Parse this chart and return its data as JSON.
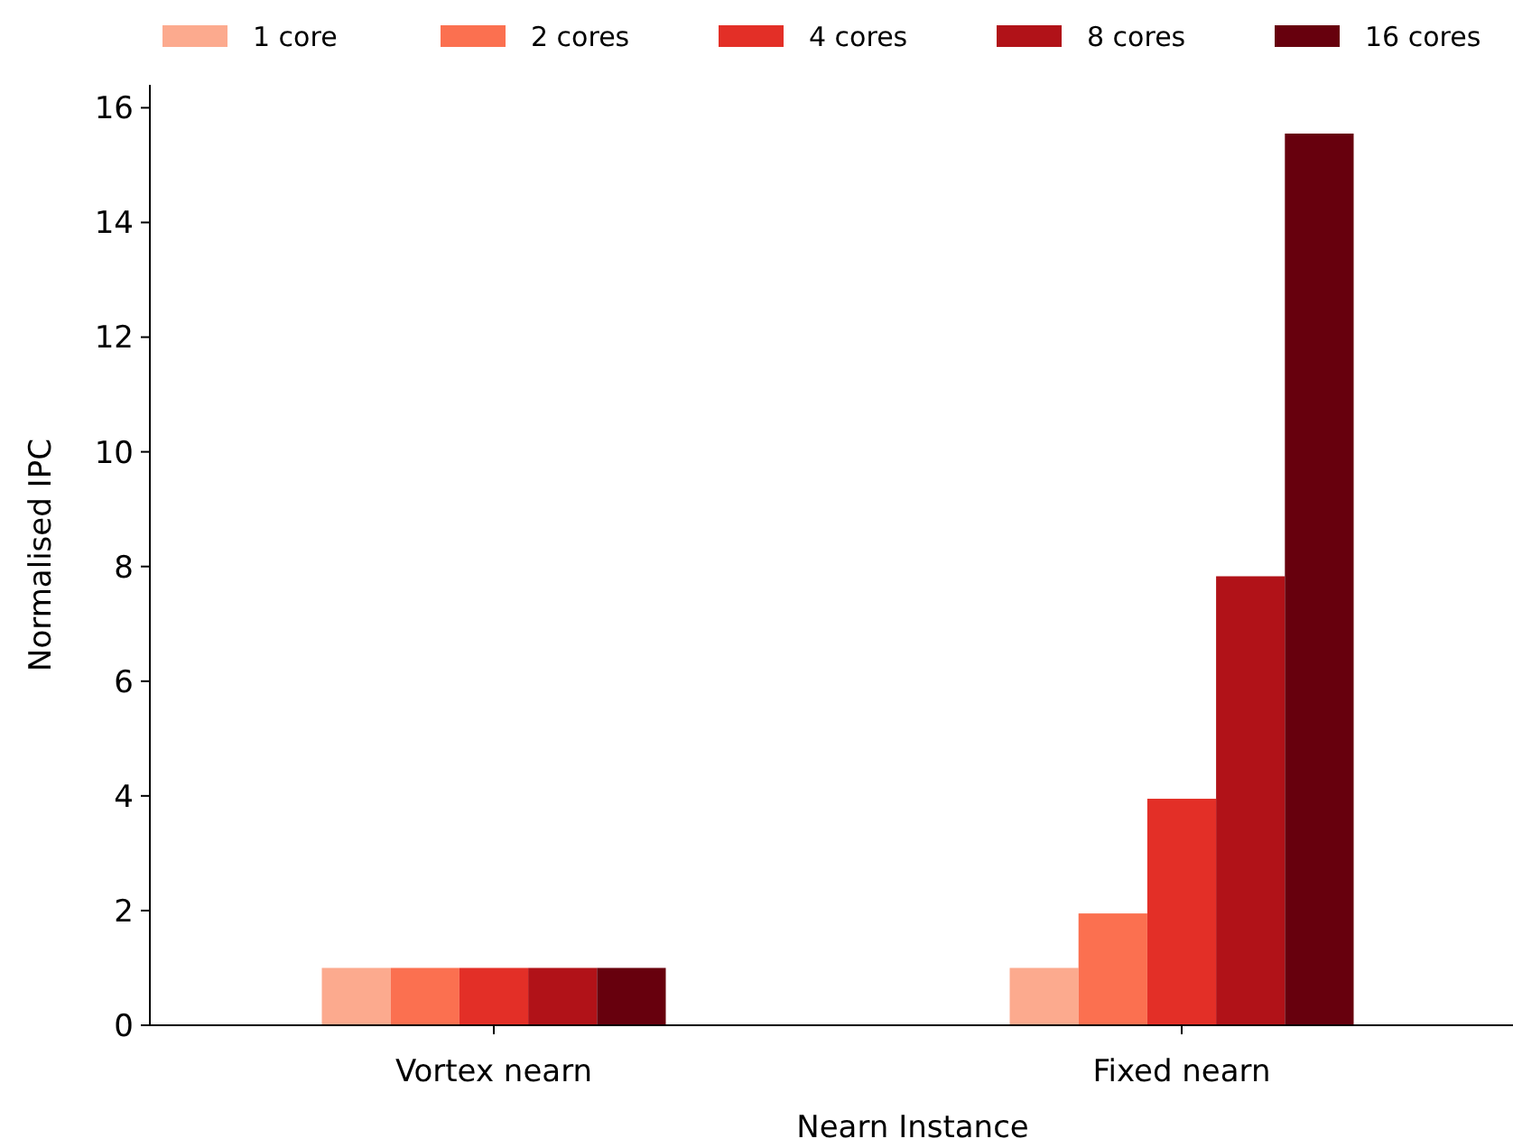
{
  "chart_data": {
    "type": "bar",
    "xlabel": "Nearn Instance",
    "ylabel": "Normalised IPC",
    "categories": [
      "Vortex nearn",
      "Fixed nearn"
    ],
    "series": [
      {
        "name": "1 core",
        "color": "#fcaa8e",
        "values": [
          1,
          1
        ]
      },
      {
        "name": "2 cores",
        "color": "#fb7050",
        "values": [
          1,
          1.95
        ]
      },
      {
        "name": "4 cores",
        "color": "#e32f27",
        "values": [
          1,
          3.95
        ]
      },
      {
        "name": "8 cores",
        "color": "#b11218",
        "values": [
          1,
          7.83
        ]
      },
      {
        "name": "16 cores",
        "color": "#67000d",
        "values": [
          1,
          15.55
        ]
      }
    ],
    "ylim": [
      0,
      16.4
    ],
    "yticks": [
      0,
      2,
      4,
      6,
      8,
      10,
      12,
      14,
      16
    ],
    "legend": "top",
    "grid": false
  }
}
